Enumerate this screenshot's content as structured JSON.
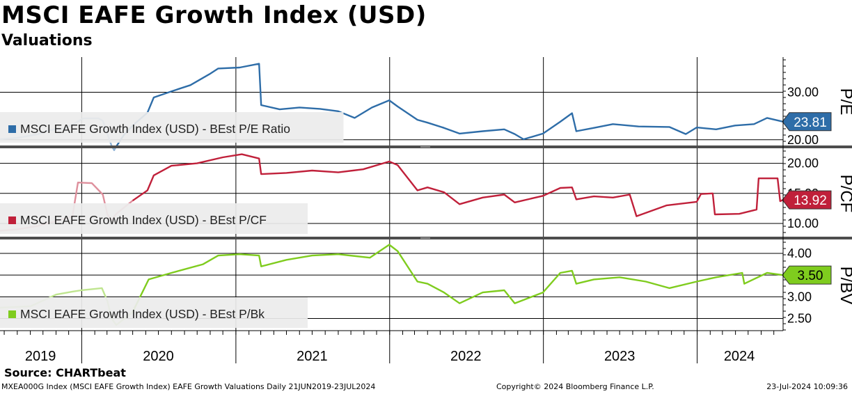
{
  "header": {
    "title": "MSCI EAFE Growth Index (USD)",
    "subtitle": "Valuations"
  },
  "footer": {
    "source": "Source: CHARTbeat",
    "ticker_info": "MXEA000G Index (MSCI EAFE Growth Index) EAFE Growth Valuations  Daily 21JUN2019-23JUL2024",
    "copyright": "Copyright© 2024 Bloomberg Finance L.P.",
    "timestamp": "23-Jul-2024 10:09:36"
  },
  "colors": {
    "pe": "#2E6DA8",
    "pcf": "#C0203A",
    "pbk": "#7FCC1E",
    "grid": "#000000",
    "divider": "#4d4d4d",
    "legend_bg": "#ececec"
  },
  "chart_data": [
    {
      "type": "line",
      "legend": "MSCI EAFE Growth Index (USD) - BEst P/E Ratio",
      "ylabel": "P/E",
      "yticks": [
        "30.00",
        "20.00"
      ],
      "ytick_values": [
        30,
        20
      ],
      "ylim": [
        18.8,
        37.4
      ],
      "last_value": "23.81",
      "last_value_num": 23.81,
      "series": {
        "name": "MSCI EAFE Growth Index (USD) - BEst P/E Ratio",
        "x": [
          "2019-06-21",
          "2019-08-01",
          "2019-09-15",
          "2019-10-15",
          "2019-11-20",
          "2019-12-10",
          "2020-01-05",
          "2020-02-10",
          "2020-02-20",
          "2020-02-28",
          "2020-03-12",
          "2020-03-18",
          "2020-03-23",
          "2020-04-10",
          "2020-05-01",
          "2020-06-05",
          "2020-06-20",
          "2020-08-01",
          "2020-09-15",
          "2020-10-30",
          "2020-11-20",
          "2021-01-10",
          "2021-02-25",
          "2021-03-02",
          "2021-04-15",
          "2021-06-01",
          "2021-07-20",
          "2021-09-01",
          "2021-10-10",
          "2021-11-20",
          "2021-12-31",
          "2022-01-20",
          "2022-03-08",
          "2022-04-01",
          "2022-05-10",
          "2022-06-16",
          "2022-08-10",
          "2022-09-30",
          "2022-10-25",
          "2022-11-15",
          "2022-12-31",
          "2023-02-10",
          "2023-03-10",
          "2023-03-20",
          "2023-05-01",
          "2023-06-15",
          "2023-08-15",
          "2023-10-27",
          "2023-12-05",
          "2023-12-31",
          "2024-02-15",
          "2024-03-31",
          "2024-05-15",
          "2024-06-15",
          "2024-07-23"
        ],
        "values": [
          20.1,
          20.4,
          21.1,
          22.0,
          22.4,
          23.2,
          24.5,
          24.5,
          24.0,
          22.0,
          18.7,
          17.8,
          18.6,
          21.0,
          23.0,
          25.7,
          28.9,
          30.2,
          31.5,
          33.8,
          35.0,
          35.2,
          36.0,
          27.3,
          26.4,
          26.8,
          26.5,
          26.0,
          24.6,
          26.8,
          28.3,
          27.0,
          24.2,
          23.6,
          22.5,
          21.3,
          21.8,
          22.2,
          21.2,
          20.1,
          21.3,
          23.8,
          25.6,
          21.8,
          22.5,
          23.3,
          22.8,
          22.7,
          21.2,
          22.6,
          22.2,
          23.0,
          23.3,
          24.6,
          23.81
        ]
      }
    },
    {
      "type": "line",
      "legend": "MSCI EAFE Growth Index (USD) - BEst P/CF",
      "ylabel": "P/CF",
      "yticks": [
        "20.00",
        "15.00",
        "10.00"
      ],
      "ytick_values": [
        20,
        15,
        10
      ],
      "ylim": [
        7.8,
        22.5
      ],
      "last_value": "13.92",
      "last_value_num": 13.92,
      "series": {
        "name": "MSCI EAFE Growth Index (USD) - BEst P/CF",
        "x": [
          "2019-06-21",
          "2019-08-01",
          "2019-09-20",
          "2019-11-01",
          "2019-12-10",
          "2019-12-23",
          "2020-01-25",
          "2020-02-20",
          "2020-03-02",
          "2020-03-12",
          "2020-03-23",
          "2020-05-01",
          "2020-06-05",
          "2020-06-20",
          "2020-08-01",
          "2020-10-01",
          "2020-12-01",
          "2021-01-15",
          "2021-02-25",
          "2021-03-02",
          "2021-05-01",
          "2021-07-01",
          "2021-09-01",
          "2021-10-30",
          "2021-12-31",
          "2022-01-20",
          "2022-03-08",
          "2022-04-01",
          "2022-05-10",
          "2022-06-16",
          "2022-08-10",
          "2022-09-30",
          "2022-10-25",
          "2022-12-31",
          "2023-02-10",
          "2023-03-10",
          "2023-03-20",
          "2023-05-01",
          "2023-06-15",
          "2023-07-25",
          "2023-08-10",
          "2023-10-20",
          "2023-12-31",
          "2024-01-10",
          "2024-02-07",
          "2024-02-12",
          "2024-04-10",
          "2024-05-21",
          "2024-05-26",
          "2024-07-10",
          "2024-07-16",
          "2024-07-23"
        ],
        "values": [
          8.8,
          9.0,
          9.6,
          10.4,
          11.2,
          16.8,
          16.7,
          14.8,
          11.5,
          10.5,
          11.6,
          13.8,
          15.5,
          18.0,
          19.6,
          20.0,
          21.0,
          21.5,
          20.8,
          18.2,
          18.4,
          18.8,
          18.5,
          19.0,
          20.3,
          19.7,
          15.5,
          16.0,
          15.2,
          13.2,
          14.3,
          14.8,
          13.5,
          14.6,
          15.9,
          16.0,
          14.0,
          14.5,
          14.3,
          14.8,
          11.2,
          13.0,
          13.6,
          14.9,
          15.0,
          11.5,
          11.6,
          12.3,
          17.5,
          17.5,
          13.7,
          13.92
        ]
      }
    },
    {
      "type": "line",
      "legend": "MSCI EAFE Growth Index (USD) - BEst P/Bk",
      "ylabel": "P/BV",
      "yticks": [
        "4.00",
        "3.50",
        "3.00",
        "2.50"
      ],
      "ytick_values": [
        4.0,
        3.5,
        3.0,
        2.5
      ],
      "ylim": [
        2.22,
        4.32
      ],
      "last_value": "3.50",
      "last_value_num": 3.5,
      "series": {
        "name": "MSCI EAFE Growth Index (USD) - BEst P/Bk",
        "x": [
          "2019-06-21",
          "2019-09-01",
          "2019-11-01",
          "2019-12-10",
          "2019-12-31",
          "2020-02-18",
          "2020-03-02",
          "2020-03-12",
          "2020-03-23",
          "2020-05-01",
          "2020-06-08",
          "2020-08-01",
          "2020-10-15",
          "2020-11-20",
          "2021-01-10",
          "2021-02-25",
          "2021-03-02",
          "2021-05-01",
          "2021-07-01",
          "2021-09-01",
          "2021-11-15",
          "2021-12-31",
          "2022-01-20",
          "2022-03-08",
          "2022-04-01",
          "2022-05-10",
          "2022-06-16",
          "2022-08-10",
          "2022-09-30",
          "2022-10-25",
          "2022-12-31",
          "2023-02-10",
          "2023-03-10",
          "2023-03-20",
          "2023-05-01",
          "2023-07-01",
          "2023-09-01",
          "2023-10-27",
          "2023-12-31",
          "2024-02-15",
          "2024-04-17",
          "2024-04-22",
          "2024-06-15",
          "2024-07-23"
        ],
        "values": [
          2.75,
          2.78,
          3.05,
          3.12,
          3.15,
          3.2,
          2.9,
          2.5,
          2.35,
          2.65,
          3.4,
          3.55,
          3.75,
          3.95,
          3.98,
          3.95,
          3.7,
          3.85,
          3.95,
          3.98,
          3.9,
          4.2,
          4.05,
          3.35,
          3.3,
          3.1,
          2.85,
          3.1,
          3.15,
          2.85,
          3.1,
          3.55,
          3.6,
          3.3,
          3.4,
          3.45,
          3.35,
          3.2,
          3.35,
          3.45,
          3.55,
          3.3,
          3.55,
          3.5
        ]
      }
    }
  ],
  "xaxis": {
    "start": "2019-06-21",
    "end": "2024-07-23",
    "year_labels": [
      "2019",
      "2020",
      "2021",
      "2022",
      "2023",
      "2024"
    ]
  }
}
